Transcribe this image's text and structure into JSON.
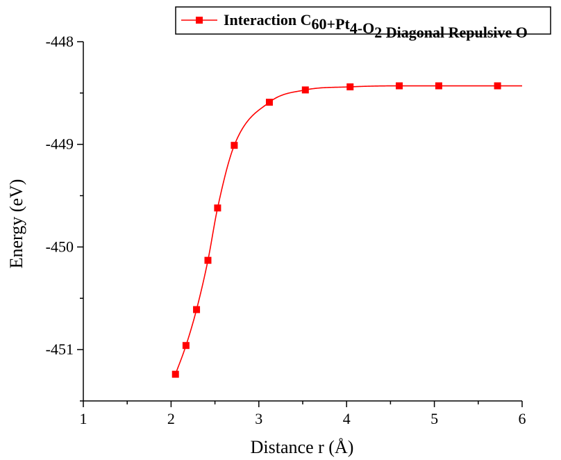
{
  "chart_data": {
    "type": "scatter",
    "xlabel": "Distance r (Å)",
    "ylabel": "Energy (eV)",
    "xlim": [
      1,
      6
    ],
    "ylim": [
      -451.5,
      -448
    ],
    "x_ticks": [
      "1",
      "2",
      "3",
      "4",
      "5",
      "6"
    ],
    "y_ticks": [
      "-448",
      "-449",
      "-450",
      "-451"
    ],
    "grid": false,
    "legend": {
      "placement": "top-right",
      "label_parts": [
        {
          "text": "Interaction C",
          "sub": false
        },
        {
          "text": "60",
          "sub": true
        },
        {
          "text": "+Pt",
          "sub": false
        },
        {
          "text": "4",
          "sub": true
        },
        {
          "text": "-O",
          "sub": false
        },
        {
          "text": "2",
          "sub": true
        },
        {
          "text": " Diagonal Repulsive O",
          "sub": false
        }
      ]
    },
    "series": [
      {
        "color": "#ff0000",
        "marker": "square",
        "fit_line": true,
        "x": [
          2.05,
          2.17,
          2.29,
          2.42,
          2.53,
          2.72,
          3.12,
          3.53,
          4.04,
          4.6,
          5.05,
          5.72
        ],
        "y": [
          -451.24,
          -450.96,
          -450.61,
          -450.13,
          -449.62,
          -449.01,
          -448.59,
          -448.47,
          -448.44,
          -448.43,
          -448.43,
          -448.43
        ]
      }
    ]
  }
}
